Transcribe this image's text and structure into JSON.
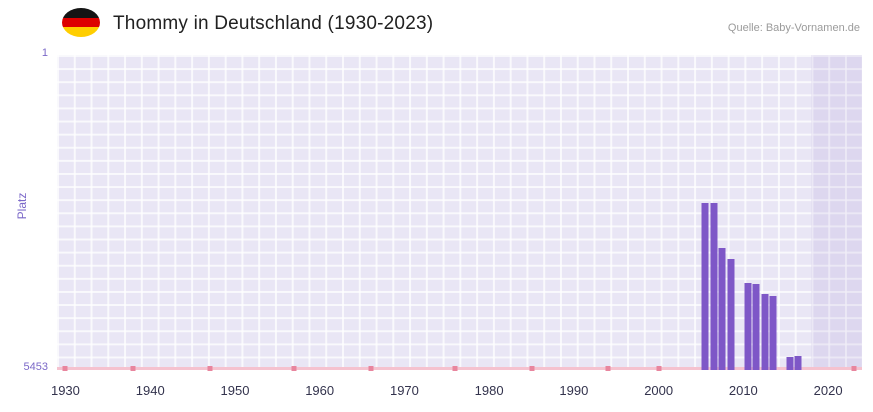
{
  "header": {
    "title": "Thommy in Deutschland (1930-2023)",
    "source": "Quelle: Baby-Vornamen.de"
  },
  "flag": {
    "name": "germany-flag-icon",
    "stripe_colors": [
      "#141414",
      "#dd0000",
      "#ffce00"
    ]
  },
  "chart_data": {
    "type": "bar",
    "title": "Thommy in Deutschland (1930-2023)",
    "xlabel": "",
    "ylabel": "Platz",
    "y_axis": {
      "min": 1,
      "max": 5453,
      "inverted": true,
      "top_tick_label": "1",
      "bottom_tick_label": "5453"
    },
    "x_range": [
      1929,
      2024
    ],
    "x_ticks": [
      1930,
      1940,
      1950,
      1960,
      1970,
      1980,
      1990,
      2000,
      2010,
      2020
    ],
    "bars": [
      {
        "year": 2005,
        "rank": 2570
      },
      {
        "year": 2006,
        "rank": 2570
      },
      {
        "year": 2007,
        "rank": 3340
      },
      {
        "year": 2008,
        "rank": 3530
      },
      {
        "year": 2010,
        "rank": 3950
      },
      {
        "year": 2011,
        "rank": 3970
      },
      {
        "year": 2012,
        "rank": 4130
      },
      {
        "year": 2013,
        "rank": 4180
      },
      {
        "year": 2015,
        "rank": 5230
      },
      {
        "year": 2016,
        "rank": 5210
      }
    ],
    "baseline_marker_years": [
      1930,
      1938,
      1947,
      1957,
      1966,
      1976,
      1985,
      1994,
      2000,
      2023
    ],
    "recent_band": {
      "from": 2018,
      "to": 2024
    },
    "grid": true,
    "legend_position": "none",
    "colors": {
      "bar": "#7e57c7",
      "plot_background": "#e9e6f5",
      "grid_line": "#ffffff",
      "y_axis_label": "#7b68c8",
      "x_tick_label": "#33334d",
      "axis_line": "#f5c2cf",
      "axis_marker": "#e8859e",
      "recent_band": "rgba(113,92,185,0.10)",
      "title": "#212121",
      "source": "#9b9b9b"
    }
  }
}
